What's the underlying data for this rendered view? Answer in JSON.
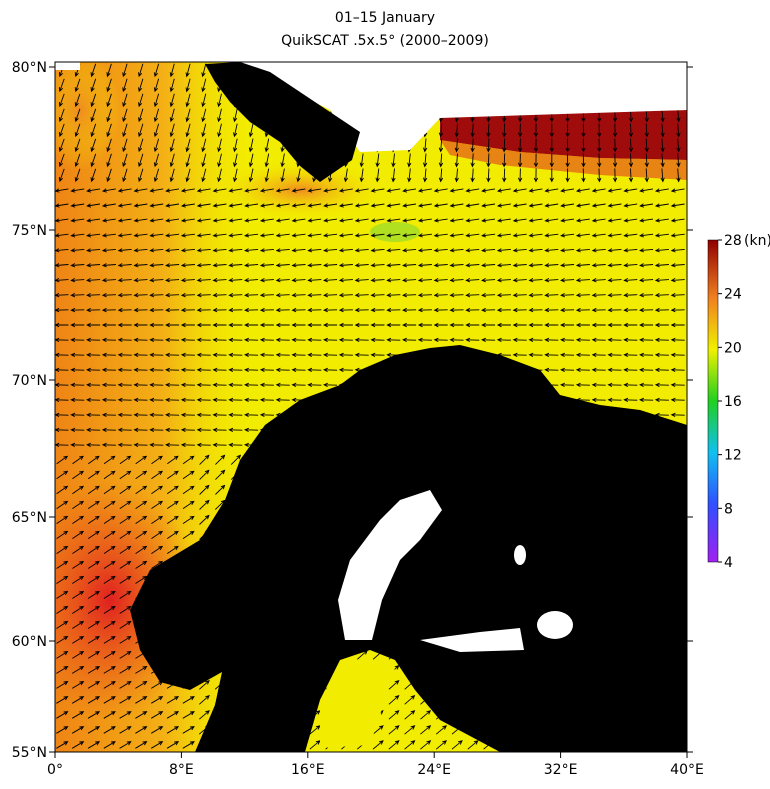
{
  "title": [
    "01–15 January",
    "QuikSCAT .5x.5° (2000–2009)"
  ],
  "map": {
    "xlim": [
      0,
      40
    ],
    "ylim": [
      55,
      80
    ],
    "xticks": [
      {
        "value": 0,
        "label": "0°"
      },
      {
        "value": 8,
        "label": "8°E"
      },
      {
        "value": 16,
        "label": "16°E"
      },
      {
        "value": 24,
        "label": "24°E"
      },
      {
        "value": 32,
        "label": "32°E"
      },
      {
        "value": 40,
        "label": "40°E"
      }
    ],
    "yticks": [
      {
        "value": 55,
        "label": "55°N"
      },
      {
        "value": 60,
        "label": "60°N"
      },
      {
        "value": 65,
        "label": "65°N"
      },
      {
        "value": 70,
        "label": "70°N"
      },
      {
        "value": 75,
        "label": "75°N"
      },
      {
        "value": 80,
        "label": "80°N"
      }
    ],
    "colorbar": {
      "lim": [
        4,
        28
      ],
      "ticks": [
        4,
        8,
        12,
        16,
        20,
        24,
        28
      ],
      "unit": "(kn)"
    }
  }
}
